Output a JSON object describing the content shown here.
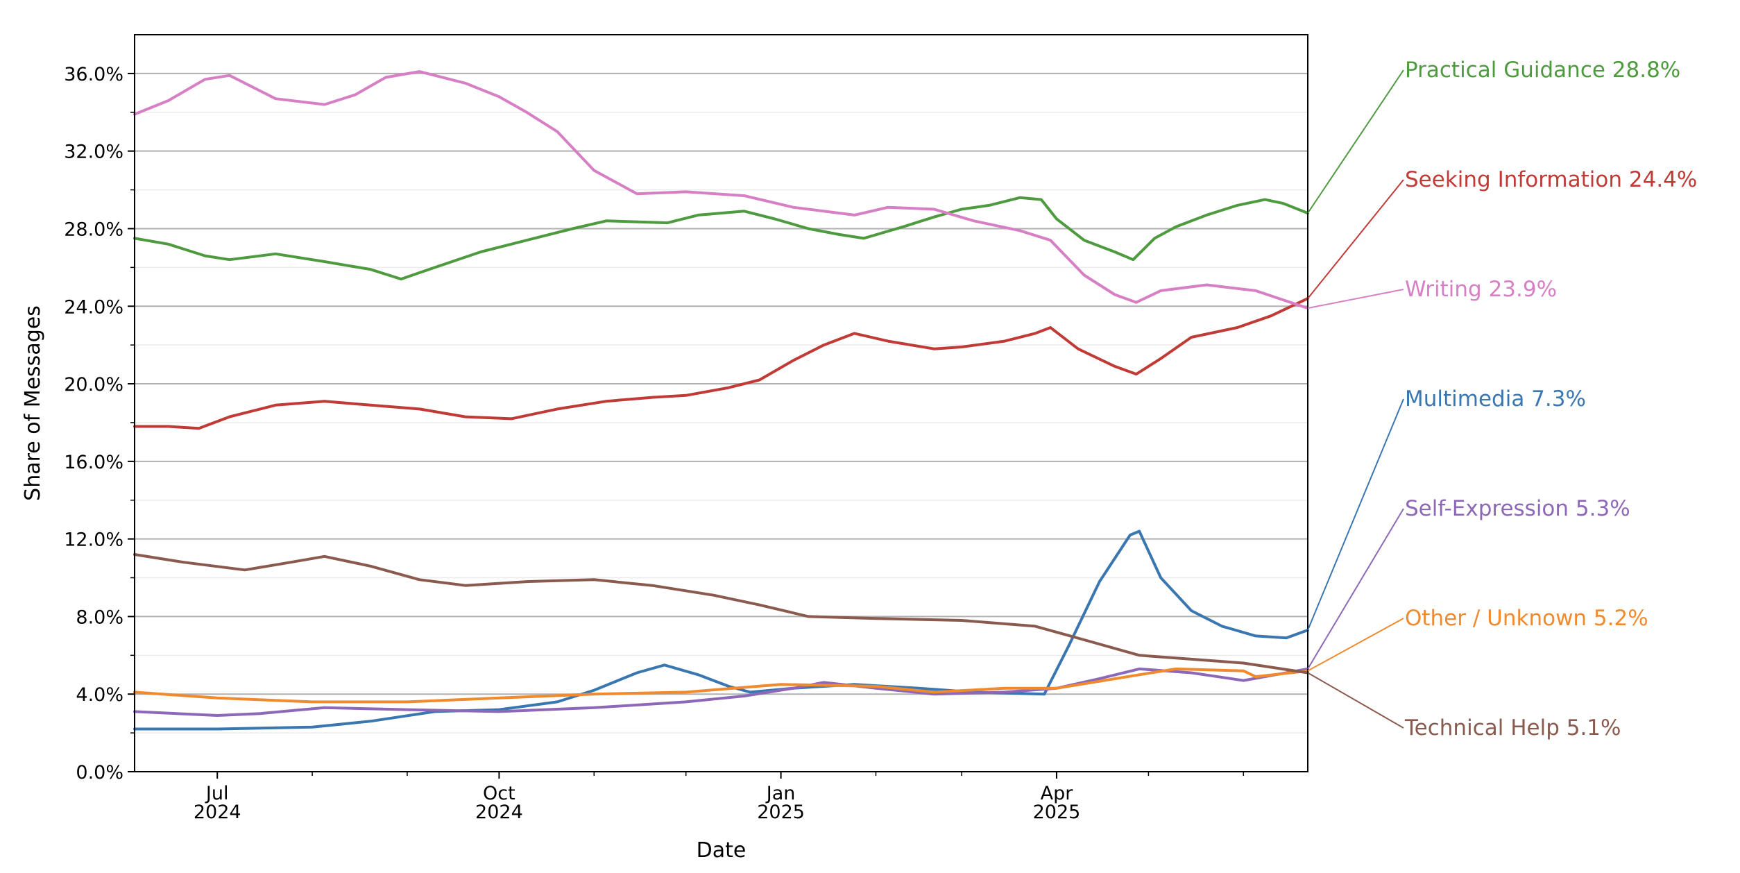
{
  "chart_data": {
    "type": "line",
    "title": "",
    "xlabel": "Date",
    "ylabel": "Share of Messages",
    "x_range": [
      "2024-06-04",
      "2025-06-22"
    ],
    "ylim": [
      0,
      38
    ],
    "y_ticks": [
      0,
      4,
      8,
      12,
      16,
      20,
      24,
      28,
      32,
      36
    ],
    "y_tick_labels": [
      "0.0%",
      "4.0%",
      "8.0%",
      "12.0%",
      "16.0%",
      "20.0%",
      "24.0%",
      "28.0%",
      "32.0%",
      "36.0%"
    ],
    "x_ticks": [
      {
        "date": "2024-07-01",
        "line1": "Jul",
        "line2": "2024"
      },
      {
        "date": "2024-10-01",
        "line1": "Oct",
        "line2": "2024"
      },
      {
        "date": "2025-01-01",
        "line1": "Jan",
        "line2": "2025"
      },
      {
        "date": "2025-04-01",
        "line1": "Apr",
        "line2": "2025"
      }
    ],
    "minor_x_ticks": [
      "2024-08-01",
      "2024-09-01",
      "2024-11-01",
      "2024-12-01",
      "2025-02-01",
      "2025-03-01",
      "2025-05-01",
      "2025-06-01"
    ],
    "grid": "horizontal",
    "legend": "end-of-line labels, right",
    "series": [
      {
        "name": "Practical Guidance",
        "label": "Practical Guidance  28.8%",
        "color": "#4e9a3f",
        "points": [
          [
            "2024-06-04",
            27.5
          ],
          [
            "2024-06-15",
            27.2
          ],
          [
            "2024-06-27",
            26.6
          ],
          [
            "2024-07-05",
            26.4
          ],
          [
            "2024-07-20",
            26.7
          ],
          [
            "2024-08-05",
            26.3
          ],
          [
            "2024-08-20",
            25.9
          ],
          [
            "2024-08-30",
            25.4
          ],
          [
            "2024-09-10",
            26.0
          ],
          [
            "2024-09-25",
            26.8
          ],
          [
            "2024-10-10",
            27.4
          ],
          [
            "2024-10-25",
            28.0
          ],
          [
            "2024-11-05",
            28.4
          ],
          [
            "2024-11-25",
            28.3
          ],
          [
            "2024-12-05",
            28.7
          ],
          [
            "2024-12-20",
            28.9
          ],
          [
            "2024-12-30",
            28.5
          ],
          [
            "2025-01-10",
            28.0
          ],
          [
            "2025-01-20",
            27.7
          ],
          [
            "2025-01-28",
            27.5
          ],
          [
            "2025-02-10",
            28.1
          ],
          [
            "2025-02-20",
            28.6
          ],
          [
            "2025-03-01",
            29.0
          ],
          [
            "2025-03-10",
            29.2
          ],
          [
            "2025-03-20",
            29.6
          ],
          [
            "2025-03-27",
            29.5
          ],
          [
            "2025-04-01",
            28.5
          ],
          [
            "2025-04-10",
            27.4
          ],
          [
            "2025-04-20",
            26.8
          ],
          [
            "2025-04-26",
            26.4
          ],
          [
            "2025-05-03",
            27.5
          ],
          [
            "2025-05-10",
            28.1
          ],
          [
            "2025-05-20",
            28.7
          ],
          [
            "2025-05-30",
            29.2
          ],
          [
            "2025-06-08",
            29.5
          ],
          [
            "2025-06-14",
            29.3
          ],
          [
            "2025-06-22",
            28.8
          ]
        ]
      },
      {
        "name": "Seeking Information",
        "label": "Seeking Information  24.4%",
        "color": "#c03a36",
        "points": [
          [
            "2024-06-04",
            17.8
          ],
          [
            "2024-06-15",
            17.8
          ],
          [
            "2024-06-25",
            17.7
          ],
          [
            "2024-07-05",
            18.3
          ],
          [
            "2024-07-20",
            18.9
          ],
          [
            "2024-08-05",
            19.1
          ],
          [
            "2024-08-20",
            18.9
          ],
          [
            "2024-09-05",
            18.7
          ],
          [
            "2024-09-20",
            18.3
          ],
          [
            "2024-10-05",
            18.2
          ],
          [
            "2024-10-20",
            18.7
          ],
          [
            "2024-11-05",
            19.1
          ],
          [
            "2024-11-20",
            19.3
          ],
          [
            "2024-12-01",
            19.4
          ],
          [
            "2024-12-15",
            19.8
          ],
          [
            "2024-12-25",
            20.2
          ],
          [
            "2025-01-05",
            21.2
          ],
          [
            "2025-01-15",
            22.0
          ],
          [
            "2025-01-25",
            22.6
          ],
          [
            "2025-02-05",
            22.2
          ],
          [
            "2025-02-20",
            21.8
          ],
          [
            "2025-03-01",
            21.9
          ],
          [
            "2025-03-15",
            22.2
          ],
          [
            "2025-03-25",
            22.6
          ],
          [
            "2025-03-30",
            22.9
          ],
          [
            "2025-04-08",
            21.8
          ],
          [
            "2025-04-20",
            20.9
          ],
          [
            "2025-04-27",
            20.5
          ],
          [
            "2025-05-05",
            21.3
          ],
          [
            "2025-05-15",
            22.4
          ],
          [
            "2025-05-30",
            22.9
          ],
          [
            "2025-06-10",
            23.5
          ],
          [
            "2025-06-22",
            24.4
          ]
        ]
      },
      {
        "name": "Writing",
        "label": "Writing  23.9%",
        "color": "#d67fc4",
        "points": [
          [
            "2024-06-04",
            33.9
          ],
          [
            "2024-06-15",
            34.6
          ],
          [
            "2024-06-27",
            35.7
          ],
          [
            "2024-07-05",
            35.9
          ],
          [
            "2024-07-20",
            34.7
          ],
          [
            "2024-08-05",
            34.4
          ],
          [
            "2024-08-15",
            34.9
          ],
          [
            "2024-08-25",
            35.8
          ],
          [
            "2024-09-05",
            36.1
          ],
          [
            "2024-09-20",
            35.5
          ],
          [
            "2024-10-01",
            34.8
          ],
          [
            "2024-10-10",
            34.0
          ],
          [
            "2024-10-20",
            33.0
          ],
          [
            "2024-11-01",
            31.0
          ],
          [
            "2024-11-15",
            29.8
          ],
          [
            "2024-12-01",
            29.9
          ],
          [
            "2024-12-20",
            29.7
          ],
          [
            "2025-01-05",
            29.1
          ],
          [
            "2025-01-25",
            28.7
          ],
          [
            "2025-02-05",
            29.1
          ],
          [
            "2025-02-20",
            29.0
          ],
          [
            "2025-03-05",
            28.4
          ],
          [
            "2025-03-20",
            27.9
          ],
          [
            "2025-03-30",
            27.4
          ],
          [
            "2025-04-10",
            25.6
          ],
          [
            "2025-04-20",
            24.6
          ],
          [
            "2025-04-27",
            24.2
          ],
          [
            "2025-05-05",
            24.8
          ],
          [
            "2025-05-20",
            25.1
          ],
          [
            "2025-06-05",
            24.8
          ],
          [
            "2025-06-22",
            23.9
          ]
        ]
      },
      {
        "name": "Multimedia",
        "label": "Multimedia  7.3%",
        "color": "#3a76b0",
        "points": [
          [
            "2024-06-04",
            2.2
          ],
          [
            "2024-07-01",
            2.2
          ],
          [
            "2024-08-01",
            2.3
          ],
          [
            "2024-08-20",
            2.6
          ],
          [
            "2024-09-10",
            3.1
          ],
          [
            "2024-10-01",
            3.2
          ],
          [
            "2024-10-20",
            3.6
          ],
          [
            "2024-11-01",
            4.2
          ],
          [
            "2024-11-15",
            5.1
          ],
          [
            "2024-11-24",
            5.5
          ],
          [
            "2024-12-05",
            5.0
          ],
          [
            "2024-12-15",
            4.4
          ],
          [
            "2024-12-22",
            4.1
          ],
          [
            "2025-01-05",
            4.3
          ],
          [
            "2025-01-25",
            4.5
          ],
          [
            "2025-02-15",
            4.3
          ],
          [
            "2025-03-05",
            4.1
          ],
          [
            "2025-03-28",
            4.0
          ],
          [
            "2025-04-05",
            6.5
          ],
          [
            "2025-04-15",
            9.8
          ],
          [
            "2025-04-25",
            12.2
          ],
          [
            "2025-04-28",
            12.4
          ],
          [
            "2025-05-05",
            10.0
          ],
          [
            "2025-05-15",
            8.3
          ],
          [
            "2025-05-25",
            7.5
          ],
          [
            "2025-06-05",
            7.0
          ],
          [
            "2025-06-15",
            6.9
          ],
          [
            "2025-06-22",
            7.3
          ]
        ]
      },
      {
        "name": "Self-Expression",
        "label": "Self-Expression  5.3%",
        "color": "#8e68b8",
        "points": [
          [
            "2024-06-04",
            3.1
          ],
          [
            "2024-07-01",
            2.9
          ],
          [
            "2024-07-15",
            3.0
          ],
          [
            "2024-08-05",
            3.3
          ],
          [
            "2024-09-01",
            3.2
          ],
          [
            "2024-10-01",
            3.1
          ],
          [
            "2024-11-01",
            3.3
          ],
          [
            "2024-12-01",
            3.6
          ],
          [
            "2024-12-20",
            3.9
          ],
          [
            "2025-01-05",
            4.3
          ],
          [
            "2025-01-15",
            4.6
          ],
          [
            "2025-02-01",
            4.3
          ],
          [
            "2025-02-20",
            4.0
          ],
          [
            "2025-03-15",
            4.1
          ],
          [
            "2025-04-01",
            4.3
          ],
          [
            "2025-04-15",
            4.8
          ],
          [
            "2025-04-28",
            5.3
          ],
          [
            "2025-05-15",
            5.1
          ],
          [
            "2025-06-01",
            4.7
          ],
          [
            "2025-06-22",
            5.3
          ]
        ]
      },
      {
        "name": "Other / Unknown",
        "label": "Other / Unknown  5.2%",
        "color": "#ef8a2f",
        "points": [
          [
            "2024-06-04",
            4.1
          ],
          [
            "2024-07-01",
            3.8
          ],
          [
            "2024-08-01",
            3.6
          ],
          [
            "2024-09-01",
            3.6
          ],
          [
            "2024-10-01",
            3.8
          ],
          [
            "2024-11-01",
            4.0
          ],
          [
            "2024-12-01",
            4.1
          ],
          [
            "2025-01-01",
            4.5
          ],
          [
            "2025-02-01",
            4.4
          ],
          [
            "2025-02-20",
            4.1
          ],
          [
            "2025-03-15",
            4.3
          ],
          [
            "2025-04-01",
            4.3
          ],
          [
            "2025-04-28",
            5.0
          ],
          [
            "2025-05-10",
            5.3
          ],
          [
            "2025-06-01",
            5.2
          ],
          [
            "2025-06-05",
            4.9
          ],
          [
            "2025-06-22",
            5.2
          ]
        ]
      },
      {
        "name": "Technical Help",
        "label": "Technical Help  5.1%",
        "color": "#8a5a4e",
        "points": [
          [
            "2024-06-04",
            11.2
          ],
          [
            "2024-06-20",
            10.8
          ],
          [
            "2024-07-10",
            10.4
          ],
          [
            "2024-07-25",
            10.8
          ],
          [
            "2024-08-05",
            11.1
          ],
          [
            "2024-08-20",
            10.6
          ],
          [
            "2024-09-05",
            9.9
          ],
          [
            "2024-09-20",
            9.6
          ],
          [
            "2024-10-10",
            9.8
          ],
          [
            "2024-11-01",
            9.9
          ],
          [
            "2024-11-20",
            9.6
          ],
          [
            "2024-12-10",
            9.1
          ],
          [
            "2024-12-25",
            8.6
          ],
          [
            "2025-01-10",
            8.0
          ],
          [
            "2025-02-01",
            7.9
          ],
          [
            "2025-03-01",
            7.8
          ],
          [
            "2025-03-25",
            7.5
          ],
          [
            "2025-04-10",
            6.8
          ],
          [
            "2025-04-28",
            6.0
          ],
          [
            "2025-05-15",
            5.8
          ],
          [
            "2025-06-01",
            5.6
          ],
          [
            "2025-06-22",
            5.1
          ]
        ]
      }
    ]
  }
}
